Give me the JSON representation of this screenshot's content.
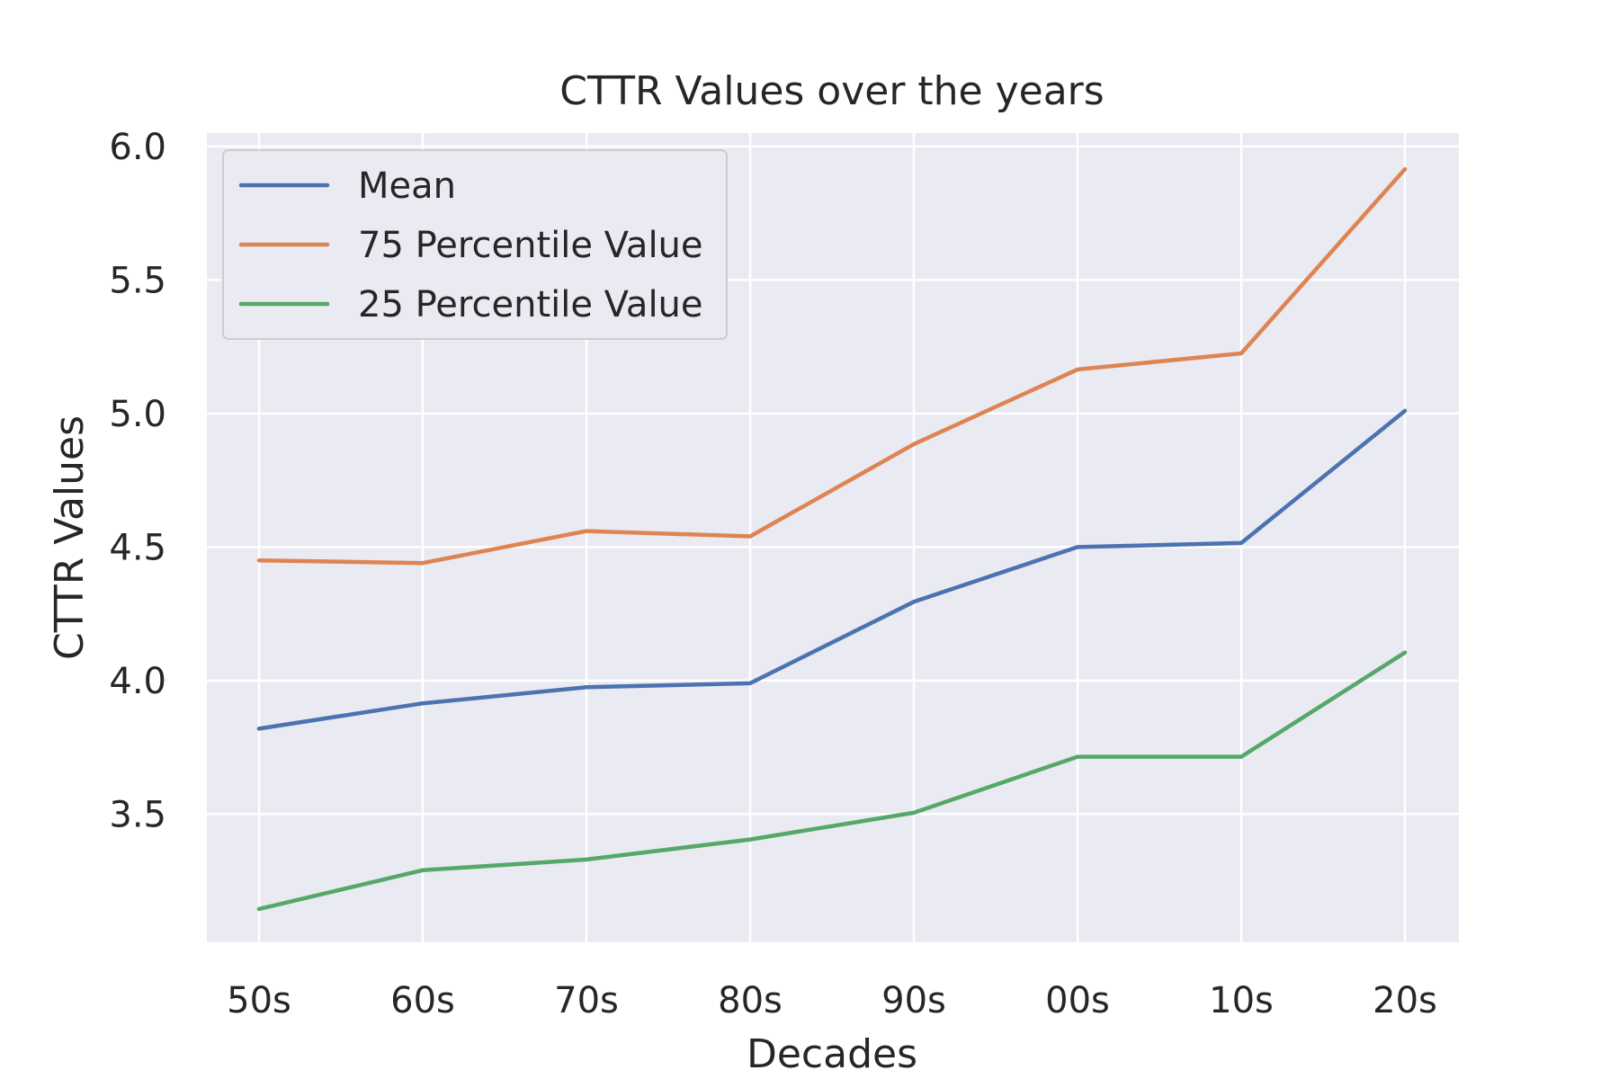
{
  "chart_data": {
    "type": "line",
    "title": "CTTR Values over the years",
    "xlabel": "Decades",
    "ylabel": "CTTR Values",
    "categories": [
      "50s",
      "60s",
      "70s",
      "80s",
      "90s",
      "00s",
      "10s",
      "20s"
    ],
    "ylim": [
      3.02,
      6.05
    ],
    "yticks": [
      "3.5",
      "4.0",
      "4.5",
      "5.0",
      "5.5",
      "6.0"
    ],
    "grid": true,
    "legend_position": "top-left",
    "series": [
      {
        "name": "Mean",
        "color": "#4c72b0",
        "values": [
          3.82,
          3.915,
          3.975,
          3.99,
          4.295,
          4.5,
          4.515,
          5.01
        ]
      },
      {
        "name": "75 Percentile Value",
        "color": "#dd8452",
        "values": [
          4.45,
          4.44,
          4.56,
          4.54,
          4.885,
          5.165,
          5.225,
          5.915
        ]
      },
      {
        "name": "25 Percentile Value",
        "color": "#55a868",
        "values": [
          3.145,
          3.29,
          3.33,
          3.405,
          3.505,
          3.715,
          3.715,
          4.105
        ]
      }
    ]
  }
}
